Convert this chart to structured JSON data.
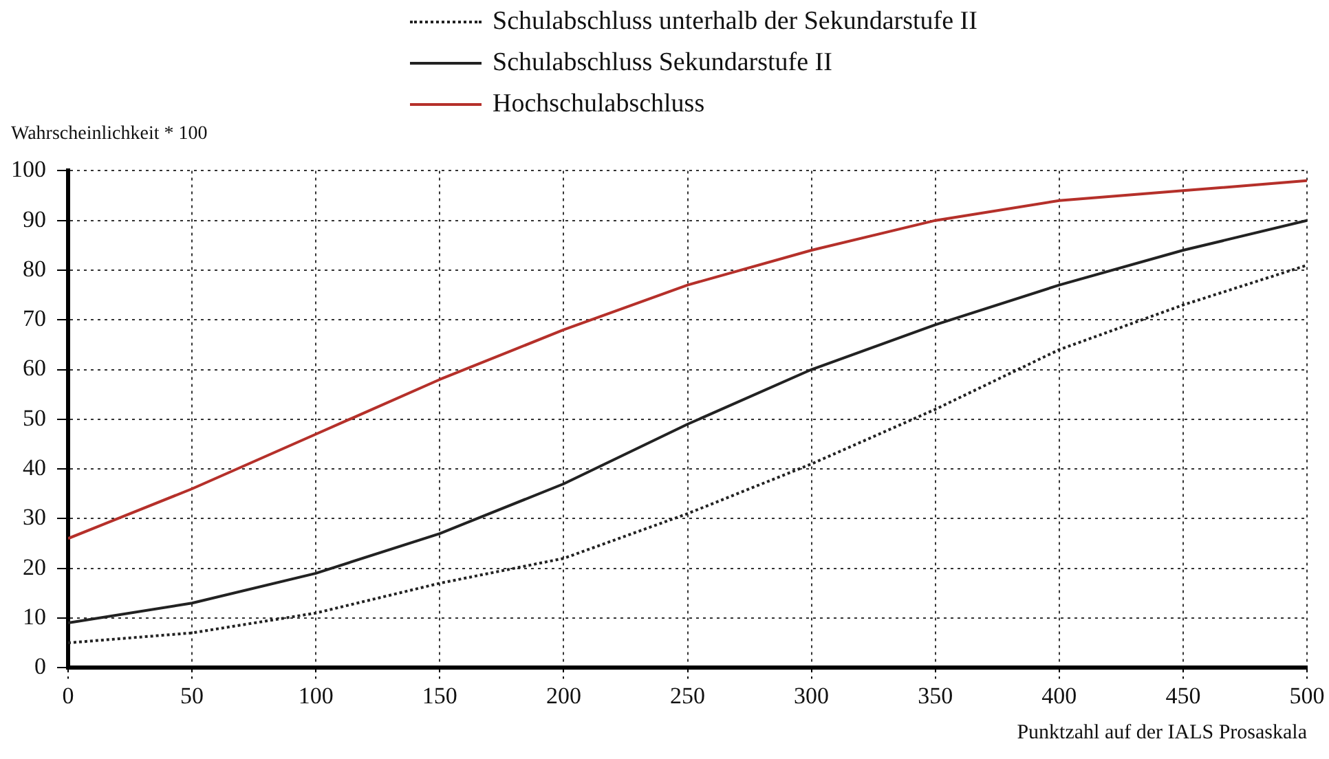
{
  "chart_data": {
    "type": "line",
    "xlabel": "Punktzahl auf der IALS Prosaskala",
    "ylabel": "Wahrscheinlichkeit  * 100",
    "x": [
      0,
      50,
      100,
      150,
      200,
      250,
      300,
      350,
      400,
      450,
      500
    ],
    "series": [
      {
        "name": "Schulabschluss unterhalb der Sekundarstufe II",
        "color": "#222222",
        "line_style": "dotted",
        "values": [
          5,
          7,
          11,
          17,
          22,
          31,
          41,
          52,
          64,
          73,
          81
        ]
      },
      {
        "name": "Schulabschluss Sekundarstufe II",
        "color": "#222222",
        "line_style": "solid",
        "values": [
          9,
          13,
          19,
          27,
          37,
          49,
          60,
          69,
          77,
          84,
          90
        ]
      },
      {
        "name": "Hochschulabschluss",
        "color": "#b5302a",
        "line_style": "solid",
        "values": [
          26,
          36,
          47,
          58,
          68,
          77,
          84,
          90,
          94,
          96,
          98
        ]
      }
    ],
    "xlim": [
      0,
      500
    ],
    "xticks": [
      0,
      50,
      100,
      150,
      200,
      250,
      300,
      350,
      400,
      450,
      500
    ],
    "ylim": [
      0,
      100
    ],
    "yticks": [
      0,
      10,
      20,
      30,
      40,
      50,
      60,
      70,
      80,
      90,
      100
    ],
    "grid": true,
    "legend": "top",
    "marker": "none"
  }
}
